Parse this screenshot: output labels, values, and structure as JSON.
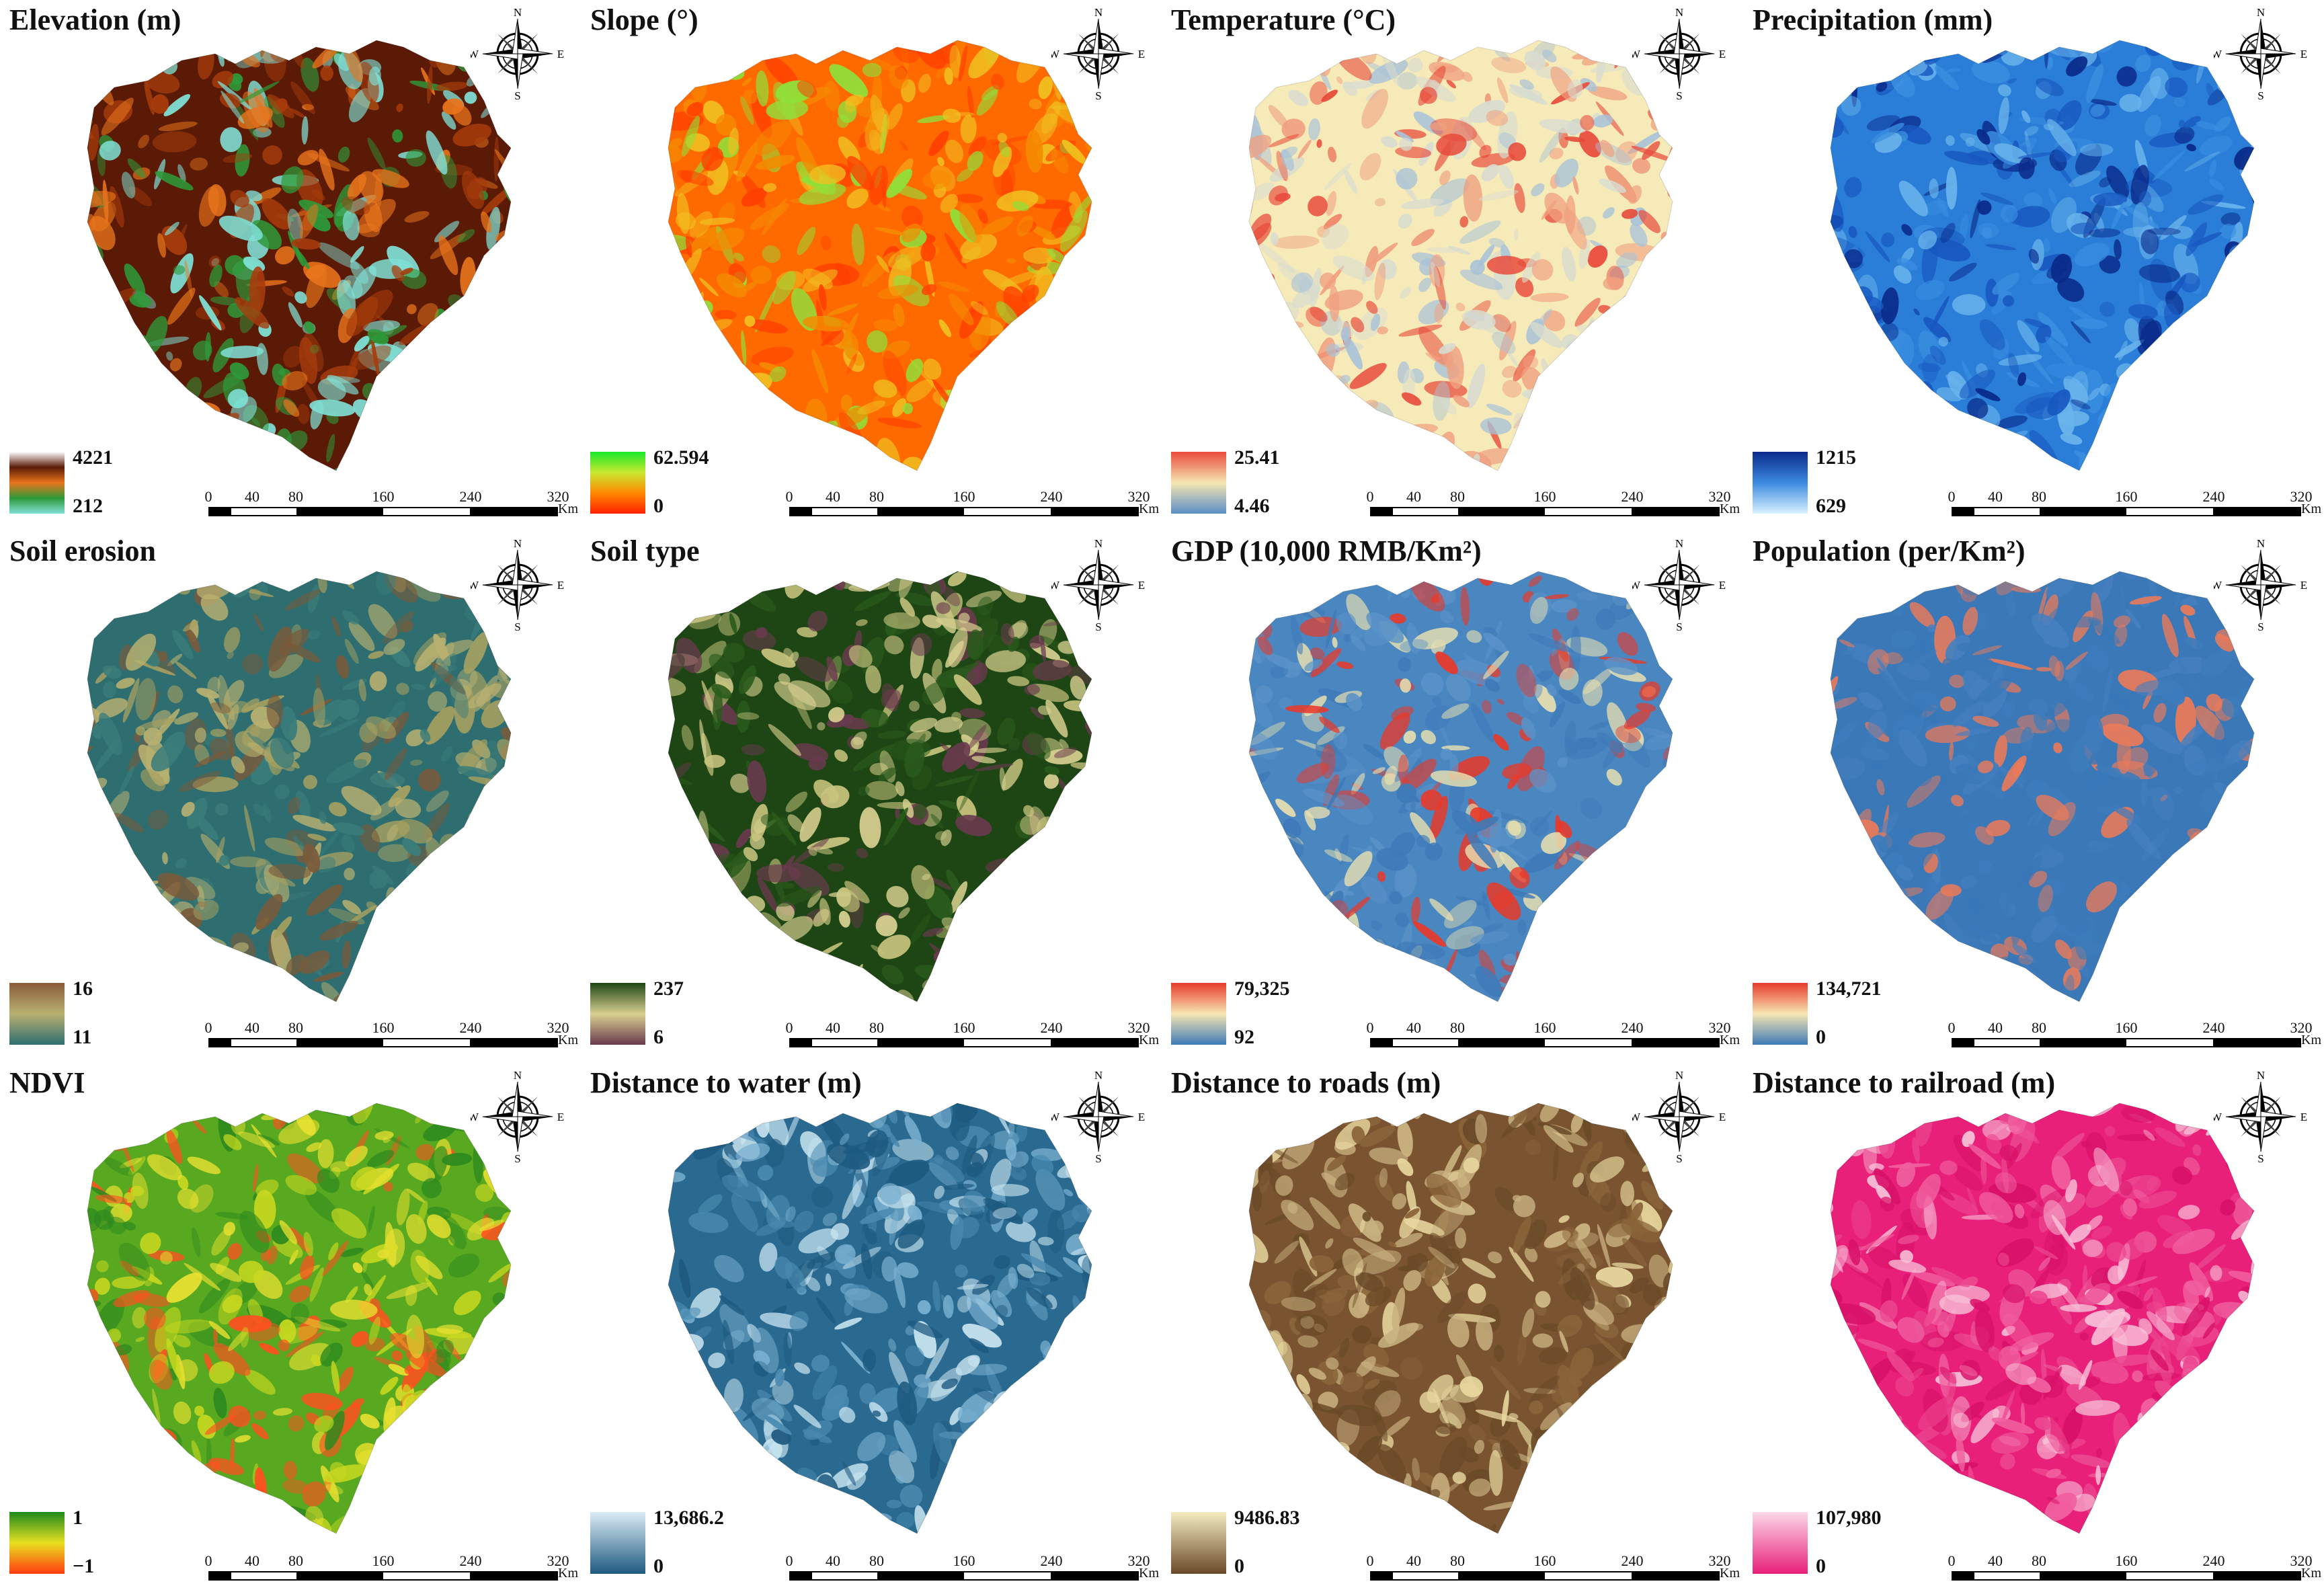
{
  "panels": [
    {
      "title": "Elevation (m)",
      "legend_max": "4221",
      "legend_min": "212",
      "colors": [
        "#5a1a06",
        "#a63c0c",
        "#e8741c",
        "#2e9a3a",
        "#7fe0d6"
      ],
      "legend_stops": [
        "#ffffff",
        "#5a1a06",
        "#e8741c",
        "#2e9a3a",
        "#7fe0d6"
      ]
    },
    {
      "title": "Slope (°)",
      "legend_max": "62.594",
      "legend_min": "0",
      "colors": [
        "#ff6a00",
        "#ff4000",
        "#f58a00",
        "#f0c020",
        "#8fe03a"
      ],
      "legend_stops": [
        "#18e82a",
        "#c8e830",
        "#ff8800",
        "#ff2000"
      ]
    },
    {
      "title": "Temperature (°C)",
      "legend_max": "25.41",
      "legend_min": "4.46",
      "colors": [
        "#f6eab8",
        "#d8dcd0",
        "#a8c2d8",
        "#f0a080",
        "#e84a3a"
      ],
      "legend_stops": [
        "#e84a3a",
        "#f6e6b2",
        "#5b8fc8"
      ]
    },
    {
      "title": "Precipitation (mm)",
      "legend_max": "1215",
      "legend_min": "629",
      "colors": [
        "#2a7ed8",
        "#3a8ee0",
        "#6ab4ec",
        "#1858c0",
        "#0a2a8a"
      ],
      "legend_stops": [
        "#0a2a8a",
        "#3c8ae0",
        "#d8f2ff"
      ]
    },
    {
      "title": "Soil erosion",
      "legend_max": "16",
      "legend_min": "11",
      "colors": [
        "#2e6e70",
        "#a6a060",
        "#7a5a3a",
        "#3a7c7a",
        "#b8b070"
      ],
      "legend_stops": [
        "#8a5a3a",
        "#b8b070",
        "#2e6e70"
      ]
    },
    {
      "title": "Soil type",
      "legend_max": "237",
      "legend_min": "6",
      "colors": [
        "#1e4614",
        "#d8d090",
        "#6a3a4e",
        "#2a5a1c",
        "#c8c47e"
      ],
      "legend_stops": [
        "#1e4614",
        "#d8d090",
        "#6a3a4e"
      ]
    },
    {
      "title": "GDP (10,000 RMB/Km²)",
      "legend_max": "79,325",
      "legend_min": "92",
      "colors": [
        "#4a86c0",
        "#5a92c8",
        "#e83a2a",
        "#e8e0b0",
        "#3e7ab8"
      ],
      "legend_stops": [
        "#e83a2a",
        "#f6e6b2",
        "#3e7ab8"
      ]
    },
    {
      "title": "Population (per/Km²)",
      "legend_max": "134,721",
      "legend_min": "0",
      "colors": [
        "#3a78b8",
        "#3e7cbc",
        "#e87a5a",
        "#3a78b8",
        "#4680c0"
      ],
      "legend_stops": [
        "#e83a2a",
        "#f6e6b2",
        "#3e7ab8"
      ]
    },
    {
      "title": "NDVI",
      "legend_max": "1",
      "legend_min": "−1",
      "colors": [
        "#58a820",
        "#c8d820",
        "#e8e030",
        "#ff5020",
        "#2e8a1e"
      ],
      "legend_stops": [
        "#1e8a1e",
        "#e8e020",
        "#ff3a10"
      ]
    },
    {
      "title": "Distance to water (m)",
      "legend_max": "13,686.2",
      "legend_min": "0",
      "colors": [
        "#2a6a90",
        "#4a8ab0",
        "#c8e4f0",
        "#1e5a80",
        "#7ab0d0"
      ],
      "legend_stops": [
        "#dcecf6",
        "#1e5a80"
      ]
    },
    {
      "title": "Distance to roads (m)",
      "legend_max": "9486.83",
      "legend_min": "0",
      "colors": [
        "#7a5430",
        "#e8d8a0",
        "#8a643a",
        "#c8b080",
        "#6a4a28"
      ],
      "legend_stops": [
        "#f4ecc0",
        "#6a4a28"
      ]
    },
    {
      "title": "Distance to railroad (m)",
      "legend_max": "107,980",
      "legend_min": "0",
      "colors": [
        "#e8207a",
        "#f060a0",
        "#f8c0d8",
        "#d81068",
        "#ec4890"
      ],
      "legend_stops": [
        "#fcd8e8",
        "#e8207a"
      ]
    }
  ],
  "compass": {
    "n": "N",
    "s": "S",
    "e": "E",
    "w": "W"
  },
  "scalebar": {
    "ticks": [
      "0",
      "40",
      "80",
      "160",
      "240",
      "320"
    ],
    "unit": "Km"
  }
}
